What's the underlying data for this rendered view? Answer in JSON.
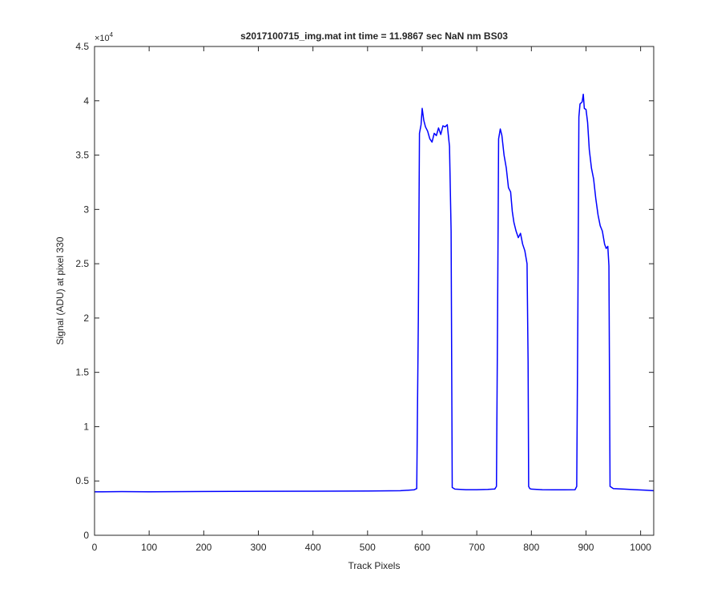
{
  "chart_data": {
    "type": "line",
    "title": "s2017100715_img.mat int time = 11.9867 sec  NaN nm BS03",
    "xlabel": "Track Pixels",
    "ylabel": "Signal (ADU) at pixel 330",
    "y_exponent_label": "×10",
    "y_exponent_power": "4",
    "xlim": [
      0,
      1024
    ],
    "ylim": [
      0,
      45000
    ],
    "xticks": [
      0,
      100,
      200,
      300,
      400,
      500,
      600,
      700,
      800,
      900,
      1000
    ],
    "xtick_labels": [
      "0",
      "100",
      "200",
      "300",
      "400",
      "500",
      "600",
      "700",
      "800",
      "900",
      "1000"
    ],
    "yticks": [
      0,
      5000,
      10000,
      15000,
      20000,
      25000,
      30000,
      35000,
      40000,
      45000
    ],
    "ytick_labels": [
      "0",
      "0.5",
      "1",
      "1.5",
      "2",
      "2.5",
      "3",
      "3.5",
      "4",
      "4.5"
    ],
    "grid": false,
    "line_color": "#0000ff",
    "series": [
      {
        "x": [
          0,
          50,
          100,
          200,
          300,
          400,
          500,
          560,
          585,
          590,
          593,
          595,
          598,
          600,
          603,
          606,
          610,
          614,
          618,
          622,
          626,
          630,
          634,
          638,
          642,
          646,
          650,
          653,
          655,
          660,
          680,
          700,
          720,
          733,
          736,
          738,
          740,
          743,
          746,
          750,
          754,
          758,
          762,
          765,
          768,
          772,
          776,
          780,
          784,
          788,
          792,
          794,
          795,
          797,
          800,
          820,
          840,
          860,
          880,
          883,
          885,
          887,
          889,
          891,
          893,
          895,
          897,
          900,
          903,
          906,
          910,
          914,
          918,
          922,
          926,
          930,
          934,
          937,
          940,
          942,
          944,
          950,
          970,
          990,
          1010,
          1024
        ],
        "y": [
          4000,
          4020,
          4000,
          4030,
          4050,
          4060,
          4080,
          4100,
          4180,
          4300,
          20000,
          37000,
          37800,
          39300,
          38200,
          37600,
          37200,
          36500,
          36200,
          37000,
          36800,
          37500,
          36900,
          37700,
          37600,
          37800,
          35800,
          28000,
          4400,
          4250,
          4200,
          4200,
          4220,
          4260,
          4500,
          20000,
          36500,
          37400,
          36800,
          35000,
          33800,
          32000,
          31600,
          29800,
          28800,
          28000,
          27400,
          27800,
          26800,
          26200,
          25000,
          16000,
          4500,
          4300,
          4250,
          4200,
          4180,
          4180,
          4200,
          4500,
          20000,
          38500,
          39700,
          39800,
          39900,
          40600,
          39300,
          39200,
          38000,
          35500,
          33800,
          32800,
          31000,
          29500,
          28500,
          28000,
          26800,
          26400,
          26600,
          24800,
          4500,
          4300,
          4250,
          4200,
          4150,
          4100
        ]
      }
    ]
  }
}
